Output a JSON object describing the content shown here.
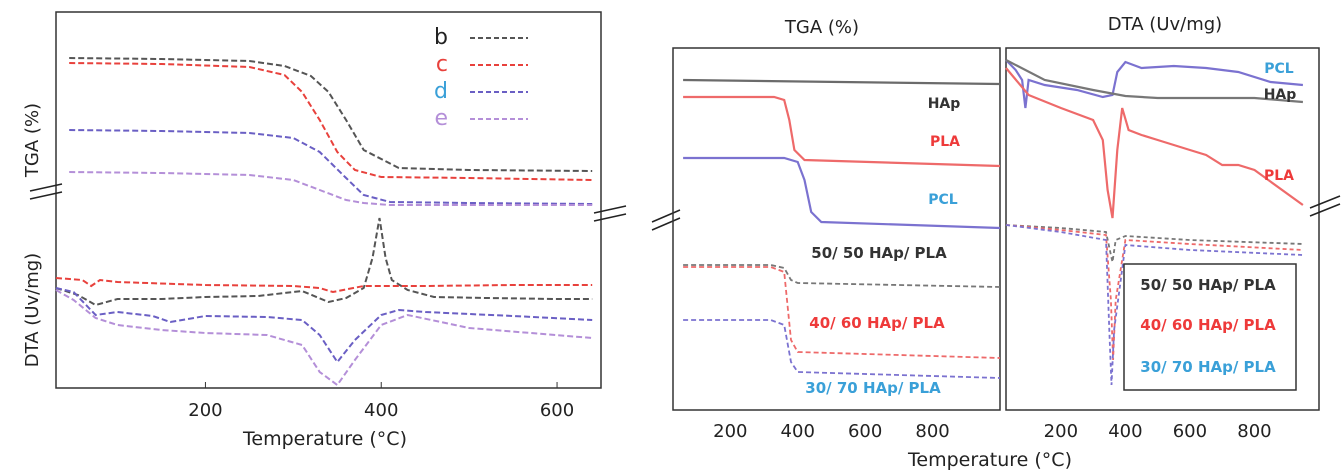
{
  "chart_data": [
    {
      "type": "line",
      "panel": "left",
      "ylabel_top": "TGA (%)",
      "ylabel_bottom": "DTA (Uv/mg)",
      "xlabel": "Temperature (°C)",
      "xlim": [
        30,
        650
      ],
      "xticks": [
        "200",
        "400",
        "600"
      ],
      "legend_position": "top-right",
      "legend": [
        {
          "key": "b",
          "color": "#222222"
        },
        {
          "key": "c",
          "color": "#e8413c"
        },
        {
          "key": "d",
          "color": "#3aa0d8"
        },
        {
          "key": "e",
          "color": "#b48fd8"
        }
      ],
      "tga_series": [
        {
          "name": "b",
          "color": "#555555",
          "x": [
            45,
            150,
            250,
            290,
            320,
            340,
            360,
            380,
            420,
            500,
            640
          ],
          "y": [
            58,
            59,
            61,
            66,
            76,
            92,
            120,
            150,
            168,
            170,
            171
          ]
        },
        {
          "name": "c",
          "color": "#e8413c",
          "x": [
            45,
            150,
            250,
            290,
            310,
            330,
            350,
            370,
            400,
            500,
            640
          ],
          "y": [
            63,
            64,
            67,
            75,
            92,
            120,
            152,
            170,
            177,
            178,
            180
          ]
        },
        {
          "name": "d",
          "color": "#6a5fc4",
          "x": [
            45,
            150,
            250,
            300,
            330,
            360,
            380,
            410,
            500,
            640
          ],
          "y": [
            130,
            131,
            133,
            138,
            152,
            178,
            195,
            202,
            203,
            204
          ]
        },
        {
          "name": "e",
          "color": "#b48fd8",
          "x": [
            45,
            150,
            250,
            300,
            330,
            360,
            380,
            410,
            500,
            640
          ],
          "y": [
            172,
            173,
            175,
            180,
            190,
            200,
            203,
            205,
            205,
            205
          ]
        }
      ],
      "dta_series": [
        {
          "name": "b",
          "color": "#555555",
          "x": [
            30,
            55,
            75,
            100,
            150,
            200,
            260,
            310,
            340,
            360,
            380,
            390,
            398,
            405,
            412,
            430,
            460,
            520,
            600,
            640
          ],
          "y": [
            288,
            295,
            305,
            299,
            299,
            297,
            296,
            291,
            302,
            298,
            288,
            258,
            218,
            258,
            280,
            290,
            297,
            298,
            299,
            299
          ]
        },
        {
          "name": "c",
          "color": "#e8413c",
          "x": [
            30,
            60,
            70,
            80,
            100,
            200,
            300,
            330,
            345,
            380,
            450,
            550,
            640
          ],
          "y": [
            278,
            280,
            286,
            280,
            282,
            285,
            286,
            288,
            292,
            286,
            286,
            285,
            285
          ]
        },
        {
          "name": "d",
          "color": "#6a5fc4",
          "x": [
            30,
            50,
            75,
            100,
            140,
            160,
            200,
            270,
            310,
            330,
            350,
            370,
            400,
            420,
            450,
            550,
            640
          ],
          "y": [
            288,
            292,
            315,
            312,
            316,
            322,
            316,
            317,
            320,
            335,
            362,
            340,
            315,
            310,
            312,
            316,
            320
          ]
        },
        {
          "name": "e",
          "color": "#b48fd8",
          "x": [
            30,
            50,
            75,
            100,
            150,
            200,
            270,
            310,
            330,
            350,
            370,
            400,
            430,
            500,
            640
          ],
          "y": [
            290,
            300,
            318,
            325,
            330,
            333,
            335,
            345,
            372,
            385,
            360,
            325,
            315,
            328,
            338
          ]
        }
      ]
    },
    {
      "type": "line",
      "panel": "middle",
      "title": "TGA (%)",
      "xlim": [
        30,
        1000
      ],
      "xticks": [
        "200",
        "400",
        "600",
        "800"
      ],
      "series": [
        {
          "name": "HAp",
          "color": "#6b6b6b",
          "label_color": "#333333",
          "x": [
            60,
            1000
          ],
          "y": [
            80,
            84
          ]
        },
        {
          "name": "PLA",
          "color": "#ee6a6a",
          "label_color": "#ee3a3a",
          "x": [
            60,
            330,
            360,
            375,
            390,
            420,
            1000
          ],
          "y": [
            97,
            97,
            100,
            120,
            150,
            160,
            166
          ]
        },
        {
          "name": "PCL",
          "color": "#7b72d0",
          "label_color": "#3aa0d8",
          "x": [
            60,
            360,
            400,
            420,
            440,
            470,
            1000
          ],
          "y": [
            158,
            158,
            162,
            180,
            212,
            222,
            228
          ]
        },
        {
          "name": "50/ 50 HAp/ PLA",
          "color": "#777777",
          "label_color": "#333333",
          "x": [
            60,
            320,
            360,
            380,
            400,
            1000
          ],
          "y": [
            265,
            265,
            268,
            280,
            283,
            287
          ]
        },
        {
          "name": "40/ 60 HAp/ PLA",
          "color": "#ee6a6a",
          "label_color": "#ee3a3a",
          "x": [
            60,
            320,
            360,
            380,
            400,
            1000
          ],
          "y": [
            267,
            267,
            272,
            340,
            352,
            358
          ]
        },
        {
          "name": "30/ 70 HAp/ PLA",
          "color": "#7b72d0",
          "label_color": "#3aa0d8",
          "x": [
            60,
            320,
            360,
            380,
            400,
            1000
          ],
          "y": [
            320,
            320,
            325,
            362,
            372,
            378
          ]
        }
      ]
    },
    {
      "type": "line",
      "panel": "right",
      "title": "DTA (Uv/mg)",
      "xlim": [
        30,
        1000
      ],
      "xticks": [
        "200",
        "400",
        "600",
        "800"
      ],
      "xlabel": "Temperature (°C)",
      "series": [
        {
          "name": "PCL",
          "color": "#7b72d0",
          "label_color": "#3aa0d8",
          "x": [
            30,
            60,
            80,
            90,
            100,
            150,
            250,
            330,
            360,
            375,
            400,
            450,
            550,
            650,
            750,
            850,
            950
          ],
          "y": [
            60,
            70,
            80,
            108,
            80,
            85,
            90,
            97,
            95,
            72,
            62,
            68,
            66,
            68,
            72,
            82,
            85
          ]
        },
        {
          "name": "HAp",
          "color": "#777777",
          "label_color": "#333333",
          "x": [
            30,
            150,
            300,
            400,
            500,
            600,
            700,
            800,
            950
          ],
          "y": [
            60,
            80,
            90,
            96,
            98,
            98,
            98,
            98,
            102
          ]
        },
        {
          "name": "PLA",
          "color": "#ee6a6a",
          "label_color": "#ee3a3a",
          "x": [
            30,
            100,
            200,
            300,
            330,
            345,
            360,
            375,
            390,
            410,
            450,
            500,
            550,
            600,
            650,
            700,
            750,
            800,
            950
          ],
          "y": [
            68,
            95,
            108,
            120,
            140,
            190,
            218,
            150,
            108,
            130,
            135,
            140,
            145,
            150,
            155,
            165,
            165,
            170,
            205
          ]
        },
        {
          "name": "50/ 50 HAp/ PLA",
          "color": "#777777",
          "label_color": "#333333",
          "x": [
            30,
            200,
            340,
            355,
            360,
            370,
            400,
            600,
            950
          ],
          "y": [
            225,
            228,
            232,
            255,
            262,
            240,
            236,
            240,
            244
          ]
        },
        {
          "name": "40/ 60 HAp/ PLA",
          "color": "#ee6a6a",
          "label_color": "#ee3a3a",
          "x": [
            30,
            200,
            340,
            355,
            362,
            370,
            400,
            600,
            950
          ],
          "y": [
            225,
            230,
            235,
            300,
            360,
            300,
            240,
            244,
            250
          ]
        },
        {
          "name": "30/ 70 HAp/ PLA",
          "color": "#7b72d0",
          "label_color": "#3aa0d8",
          "x": [
            30,
            200,
            340,
            350,
            357,
            365,
            400,
            600,
            950
          ],
          "y": [
            225,
            232,
            240,
            330,
            385,
            330,
            245,
            250,
            255
          ]
        }
      ]
    }
  ]
}
